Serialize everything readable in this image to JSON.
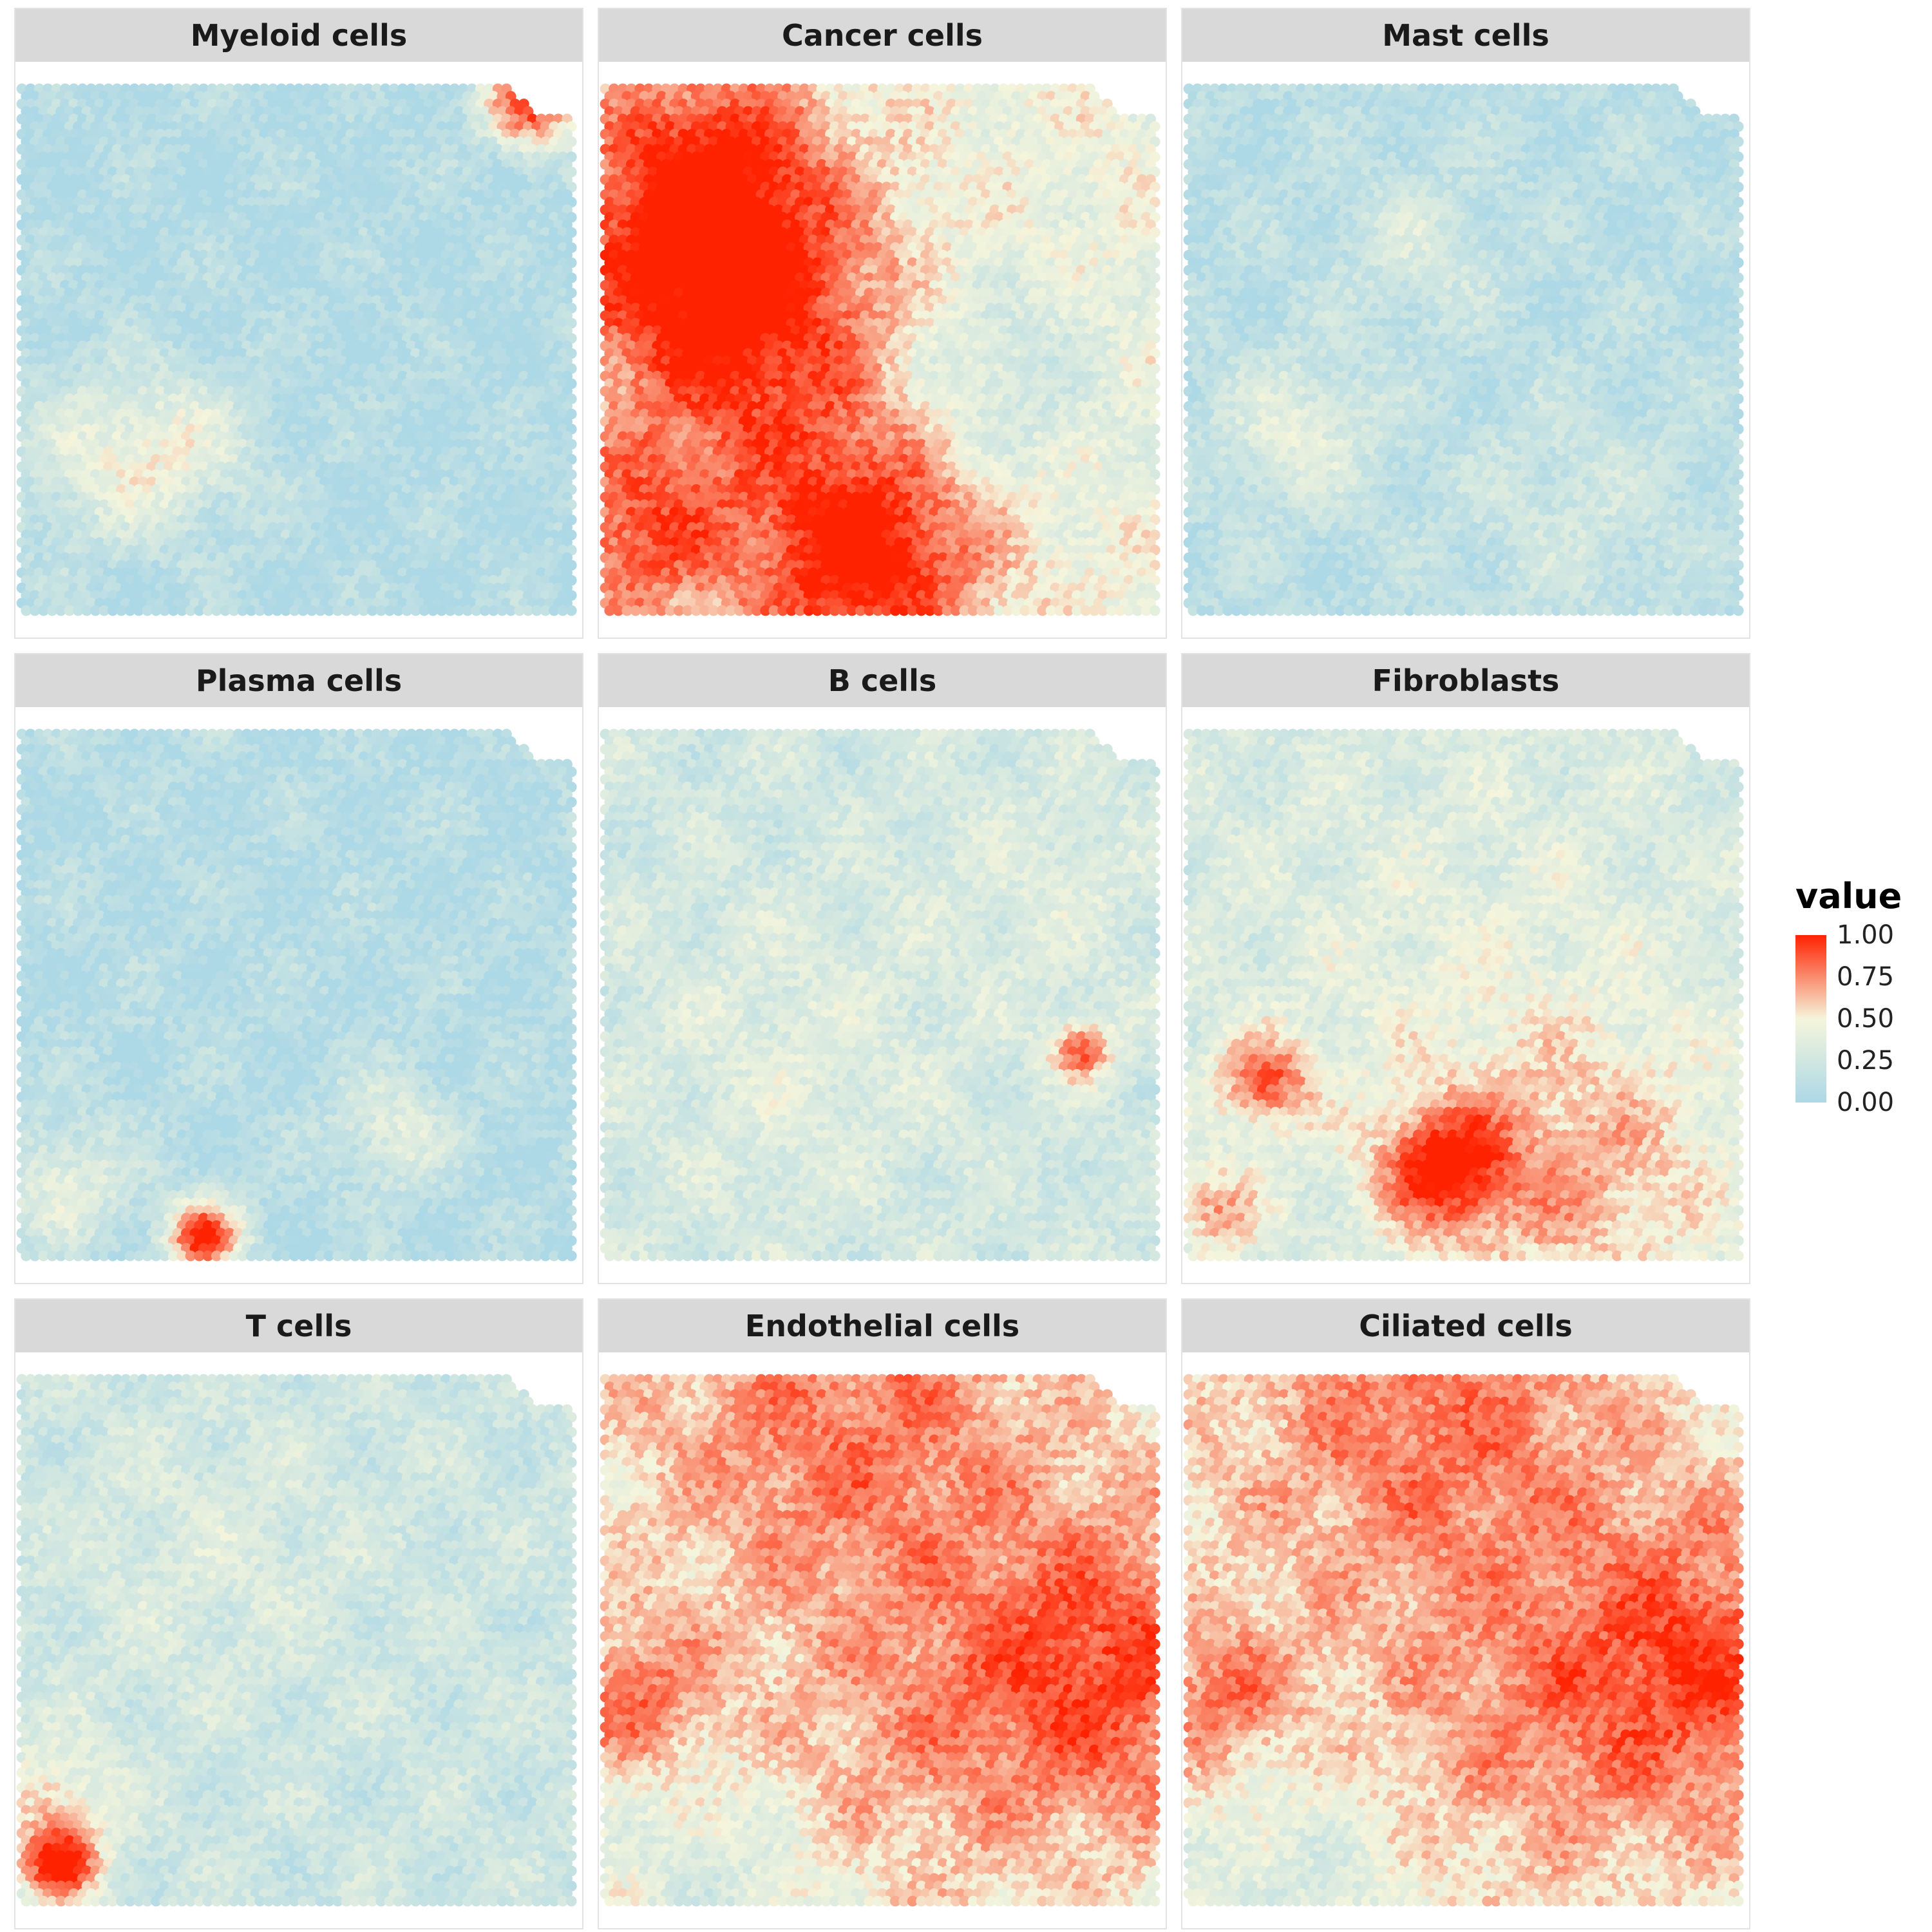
{
  "chart_data": {
    "type": "heatmap",
    "description_type": "spatial faceted hexagonal spot map",
    "panels": [
      {
        "title": "Myeloid cells",
        "base": 0.06,
        "hot_spots": [
          [
            0.92,
            0.03,
            0.06,
            0.9
          ],
          [
            0.15,
            0.7,
            0.12,
            0.3
          ],
          [
            0.3,
            0.68,
            0.1,
            0.25
          ]
        ]
      },
      {
        "title": "Cancer cells",
        "base": 0.45,
        "hot_spots": [
          [
            0.15,
            0.3,
            0.18,
            0.45
          ],
          [
            0.3,
            0.5,
            0.2,
            0.4
          ],
          [
            0.05,
            0.85,
            0.12,
            0.4
          ],
          [
            0.45,
            0.92,
            0.15,
            0.35
          ],
          [
            0.2,
            0.12,
            0.15,
            0.3
          ],
          [
            0.7,
            0.55,
            0.15,
            -0.25
          ],
          [
            0.5,
            0.85,
            0.15,
            0.3
          ]
        ]
      },
      {
        "title": "Mast cells",
        "base": 0.1,
        "hot_spots": [
          [
            0.2,
            0.65,
            0.1,
            0.3
          ],
          [
            0.42,
            0.3,
            0.1,
            0.2
          ],
          [
            0.7,
            0.8,
            0.15,
            0.15
          ]
        ]
      },
      {
        "title": "Plasma cells",
        "base": 0.07,
        "hot_spots": [
          [
            0.33,
            0.95,
            0.05,
            0.9
          ],
          [
            0.08,
            0.85,
            0.08,
            0.35
          ],
          [
            0.67,
            0.75,
            0.08,
            0.3
          ]
        ]
      },
      {
        "title": "B cells",
        "base": 0.25,
        "hot_spots": [
          [
            0.35,
            0.62,
            0.2,
            0.12
          ],
          [
            0.86,
            0.6,
            0.04,
            0.6
          ],
          [
            0.8,
            0.3,
            0.15,
            0.1
          ]
        ]
      },
      {
        "title": "Fibroblasts",
        "base": 0.28,
        "hot_spots": [
          [
            0.46,
            0.82,
            0.08,
            0.65
          ],
          [
            0.14,
            0.66,
            0.06,
            0.55
          ],
          [
            0.7,
            0.85,
            0.2,
            0.35
          ],
          [
            0.05,
            0.9,
            0.06,
            0.4
          ],
          [
            0.5,
            0.5,
            0.3,
            0.12
          ]
        ]
      },
      {
        "title": "T cells",
        "base": 0.22,
        "hot_spots": [
          [
            0.07,
            0.92,
            0.05,
            0.75
          ],
          [
            0.05,
            0.8,
            0.08,
            0.35
          ],
          [
            0.35,
            0.35,
            0.2,
            0.1
          ]
        ]
      },
      {
        "title": "Endothelial cells",
        "base": 0.5,
        "hot_spots": [
          [
            0.92,
            0.55,
            0.2,
            0.4
          ],
          [
            0.45,
            0.1,
            0.25,
            0.3
          ],
          [
            0.05,
            0.6,
            0.1,
            0.3
          ],
          [
            0.2,
            0.95,
            0.15,
            -0.2
          ],
          [
            0.55,
            0.7,
            0.2,
            0.15
          ]
        ]
      },
      {
        "title": "Ciliated cells",
        "base": 0.5,
        "hot_spots": [
          [
            0.92,
            0.55,
            0.2,
            0.4
          ],
          [
            0.45,
            0.1,
            0.25,
            0.3
          ],
          [
            0.05,
            0.6,
            0.1,
            0.3
          ],
          [
            0.2,
            0.95,
            0.15,
            -0.2
          ],
          [
            0.55,
            0.7,
            0.2,
            0.15
          ]
        ]
      }
    ],
    "legend": {
      "title": "value",
      "ticks": [
        "1.00",
        "0.75",
        "0.50",
        "0.25",
        "0.00"
      ],
      "tick_values": [
        1.0,
        0.75,
        0.5,
        0.25,
        0.0
      ],
      "placement": "right",
      "colors": [
        "#add8e6",
        "#f5f5dc",
        "#ff2200"
      ]
    },
    "value_range": [
      0,
      1
    ],
    "grid": false
  }
}
